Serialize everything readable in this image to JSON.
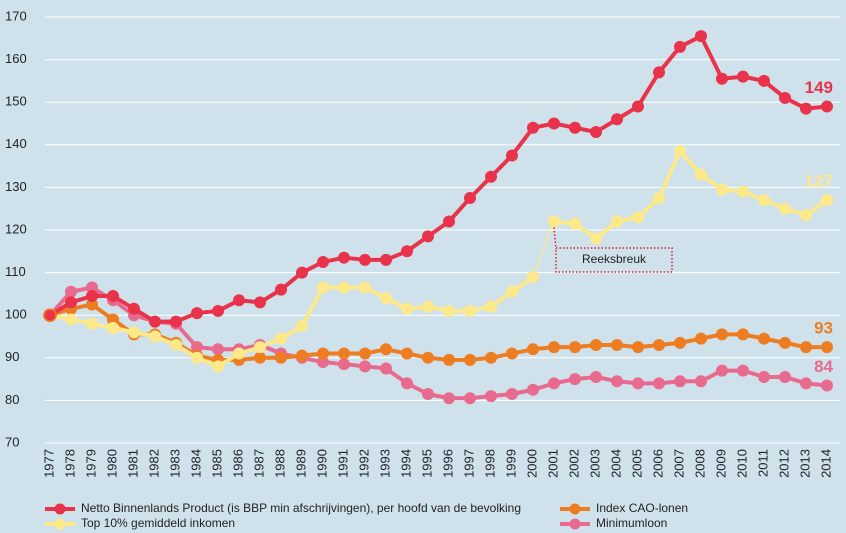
{
  "chart_data": {
    "type": "line",
    "categories": [
      "1977",
      "1978",
      "1979",
      "1980",
      "1981",
      "1982",
      "1983",
      "1984",
      "1985",
      "1986",
      "1987",
      "1988",
      "1989",
      "1990",
      "1991",
      "1992",
      "1993",
      "1994",
      "1995",
      "1996",
      "1997",
      "1998",
      "1999",
      "2000",
      "2001",
      "2002",
      "2003",
      "2004",
      "2005",
      "2006",
      "2007",
      "2008",
      "2009",
      "2010",
      "2011",
      "2012",
      "2013",
      "2014"
    ],
    "series": [
      {
        "name": "Netto Binnenlands Product (is BBP min afschrijvingen), per hoofd van de bevolking",
        "color": "#e8334a",
        "end_label": 149,
        "values": [
          100,
          103,
          104.5,
          104.5,
          101.5,
          98.5,
          98.5,
          100.5,
          101,
          103.5,
          103,
          106,
          110,
          112.5,
          113.5,
          113,
          113,
          115,
          118.5,
          122,
          127.5,
          132.5,
          137.5,
          144,
          145,
          144,
          143,
          146,
          149,
          157,
          163,
          165.5,
          155.5,
          156,
          155,
          151,
          148.5,
          149
        ]
      },
      {
        "name": "Top 10% gemiddeld inkomen",
        "color": "#fde98a",
        "end_label": 127,
        "values": [
          100,
          99,
          98,
          97,
          96,
          95,
          93,
          90,
          88,
          91,
          92.5,
          94.5,
          97.5,
          106.5,
          106.5,
          106.5,
          104,
          101.5,
          102,
          101,
          101,
          102,
          105.5,
          109,
          122,
          121.5,
          118,
          122,
          123,
          127.5,
          138.5,
          133,
          129.5,
          129,
          127,
          125,
          123.5,
          127
        ]
      },
      {
        "name": "Index CAO-lonen",
        "color": "#ee7d22",
        "end_label": 93,
        "values": [
          100,
          101.5,
          102.5,
          99,
          95.5,
          95.5,
          93.5,
          90.5,
          89.5,
          89.5,
          90,
          90,
          90.5,
          91,
          91,
          91,
          92,
          91,
          90,
          89.5,
          89.5,
          90,
          91,
          92,
          92.5,
          92.5,
          93,
          93,
          92.5,
          93,
          93.5,
          94.5,
          95.5,
          95.5,
          94.5,
          93.5,
          92.5,
          92.5
        ]
      },
      {
        "name": "Minimumloon",
        "color": "#e86a8e",
        "end_label": 84,
        "values": [
          100,
          105.5,
          106.5,
          103.5,
          100,
          98.5,
          98,
          92.5,
          92,
          92,
          93,
          91,
          90,
          89,
          88.5,
          88,
          87.5,
          84,
          81.5,
          80.5,
          80.5,
          81,
          81.5,
          82.5,
          84,
          85,
          85.5,
          84.5,
          84,
          84,
          84.5,
          84.5,
          87,
          87,
          85.5,
          85.5,
          84,
          83.5
        ]
      }
    ],
    "annotation": {
      "label": "Reeksbreuk",
      "category": "2001",
      "series": "Top 10% gemiddeld inkomen"
    },
    "ylim": [
      70,
      170
    ],
    "yticks": [
      70,
      80,
      90,
      100,
      110,
      120,
      130,
      140,
      150,
      160,
      170
    ],
    "grid": true,
    "legend": "bottom"
  }
}
